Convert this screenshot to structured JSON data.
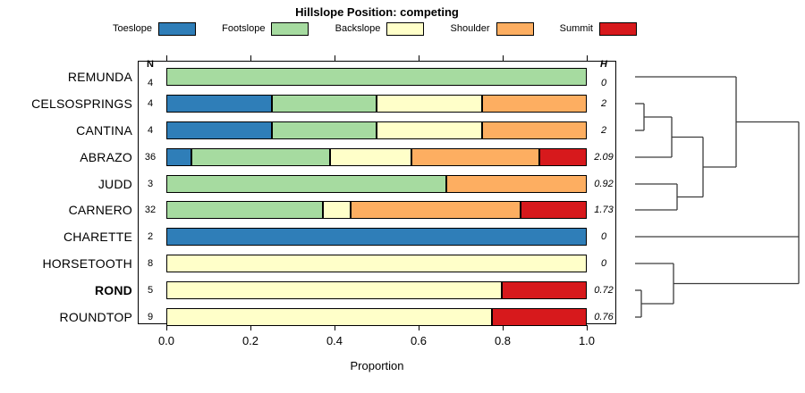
{
  "title": "Hillslope Position: competing",
  "columns": {
    "n_header": "N",
    "h_header": "H"
  },
  "axis": {
    "label": "Proportion",
    "tick_labels": [
      "0.0",
      "0.2",
      "0.4",
      "0.6",
      "0.8",
      "1.0"
    ],
    "tick_values": [
      0,
      0.2,
      0.4,
      0.6,
      0.8,
      1.0
    ]
  },
  "legend": [
    {
      "label": "Toeslope",
      "color": "#2F7EB8"
    },
    {
      "label": "Footslope",
      "color": "#A6DBA0"
    },
    {
      "label": "Backslope",
      "color": "#FFFFC9"
    },
    {
      "label": "Shoulder",
      "color": "#FDAE61"
    },
    {
      "label": "Summit",
      "color": "#D7191C"
    }
  ],
  "chart_data": {
    "type": "bar",
    "orientation": "horizontal-stacked",
    "title": "Hillslope Position: competing",
    "xlabel": "Proportion",
    "xlim": [
      0,
      1
    ],
    "categories": [
      "REMUNDA",
      "CELSOSPRINGS",
      "CANTINA",
      "ABRAZO",
      "JUDD",
      "CARNERO",
      "CHARETTE",
      "HORSETOOTH",
      "ROND",
      "ROUNDTOP"
    ],
    "bold_categories": [
      "ROND"
    ],
    "n_values": [
      4,
      4,
      4,
      36,
      3,
      32,
      2,
      8,
      5,
      9
    ],
    "h_values": [
      "0",
      "2",
      "2",
      "2.09",
      "0.92",
      "1.73",
      "0",
      "0",
      "0.72",
      "0.76"
    ],
    "series": [
      {
        "name": "Toeslope",
        "color": "#2F7EB8",
        "values": [
          0,
          0.25,
          0.25,
          0.0556,
          0,
          0,
          1,
          0,
          0,
          0
        ]
      },
      {
        "name": "Footslope",
        "color": "#A6DBA0",
        "values": [
          1,
          0.25,
          0.25,
          0.3333,
          0.6667,
          0.375,
          0,
          0,
          0,
          0
        ]
      },
      {
        "name": "Backslope",
        "color": "#FFFFC9",
        "values": [
          0,
          0.25,
          0.25,
          0.1944,
          0,
          0.0625,
          0,
          1,
          0.8,
          0.7778
        ]
      },
      {
        "name": "Shoulder",
        "color": "#FDAE61",
        "values": [
          0,
          0.25,
          0.25,
          0.3056,
          0.3333,
          0.4063,
          0,
          0,
          0,
          0
        ]
      },
      {
        "name": "Summit",
        "color": "#D7191C",
        "values": [
          0,
          0,
          0,
          0.1111,
          0,
          0.1562,
          0,
          0,
          0.2,
          0.2222
        ]
      }
    ],
    "dendrogram": {
      "line_color": "#3c3c3c",
      "segments": [
        [
          710,
          86,
          823,
          86
        ],
        [
          710,
          116,
          720,
          116
        ],
        [
          710,
          146,
          720,
          146
        ],
        [
          720,
          116,
          720,
          146
        ],
        [
          720,
          131,
          751,
          131
        ],
        [
          710,
          176,
          751,
          176
        ],
        [
          751,
          131,
          751,
          176
        ],
        [
          751,
          153.5,
          786,
          153.5
        ],
        [
          710,
          206,
          757,
          206
        ],
        [
          710,
          235,
          757,
          235
        ],
        [
          757,
          206,
          757,
          235
        ],
        [
          757,
          220.5,
          786,
          220.5
        ],
        [
          786,
          153.5,
          786,
          220.5
        ],
        [
          786,
          187,
          823,
          187
        ],
        [
          823,
          86,
          823,
          187
        ],
        [
          823,
          136.5,
          893,
          136.5
        ],
        [
          710,
          265,
          893,
          265
        ],
        [
          710,
          295,
          753,
          295
        ],
        [
          710,
          325,
          717,
          325
        ],
        [
          710,
          355,
          717,
          355
        ],
        [
          717,
          325,
          717,
          355
        ],
        [
          717,
          340,
          753,
          340
        ],
        [
          753,
          295,
          753,
          340
        ],
        [
          753,
          317.5,
          893,
          317.5
        ],
        [
          893,
          136.5,
          893,
          317.5
        ]
      ]
    }
  }
}
